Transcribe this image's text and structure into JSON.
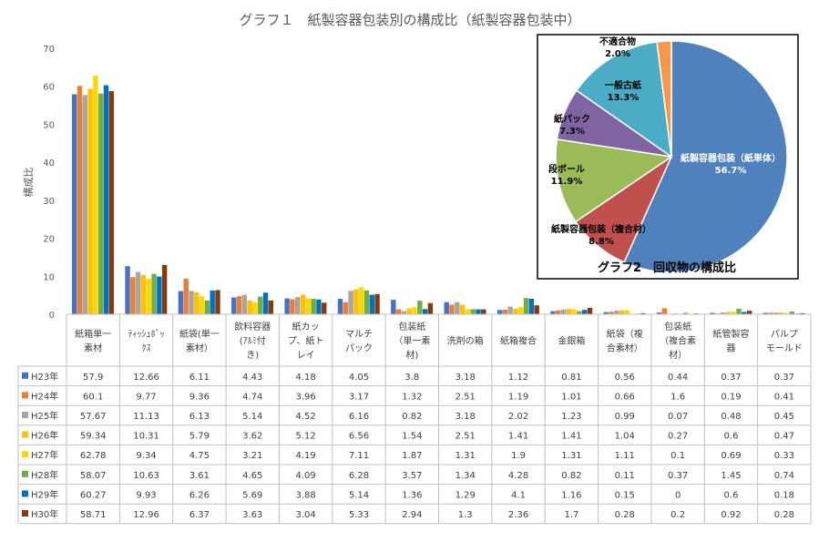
{
  "chart_data": [
    {
      "type": "bar",
      "title": "グラフ１　紙製容器包装別の構成比（紙製容器包装中）",
      "ylabel": "構成比",
      "ylim": [
        0,
        70
      ],
      "yticks": [
        0,
        10,
        20,
        30,
        40,
        50,
        60,
        70
      ],
      "grid": false,
      "legend": "table-left",
      "categories": [
        [
          "紙箱単一",
          "素材"
        ],
        [
          "ﾃｨｯｼｭﾎﾞｯ",
          "ｸｽ"
        ],
        [
          "紙袋(単一",
          "素材）"
        ],
        [
          "飲料容器",
          "(ｱﾙﾐ付",
          "き)"
        ],
        [
          "紙カッ",
          "プ、紙ト",
          "レイ"
        ],
        [
          "マルチ",
          "パック"
        ],
        [
          "包装紙",
          "（単一素",
          "材)"
        ],
        [
          "洗剤の箱"
        ],
        [
          "紙箱複合"
        ],
        [
          "金銀箱"
        ],
        [
          "紙袋（複",
          "合素材）"
        ],
        [
          "包装紙",
          "（複合素",
          "材）"
        ],
        [
          "紙管製容",
          "器"
        ],
        [
          "パルプ",
          "モールド"
        ]
      ],
      "series": [
        {
          "name": "H23年",
          "color": "#4472C4",
          "values": [
            57.9,
            12.66,
            6.11,
            4.43,
            4.18,
            4.05,
            3.8,
            3.18,
            1.12,
            0.81,
            0.56,
            0.44,
            0.37,
            0.37
          ]
        },
        {
          "name": "H24年",
          "color": "#ED7D31",
          "values": [
            60.1,
            9.77,
            9.36,
            4.74,
            3.96,
            3.17,
            1.32,
            2.51,
            1.19,
            1.01,
            0.66,
            1.6,
            0.19,
            0.41
          ]
        },
        {
          "name": "H25年",
          "color": "#A5A5A5",
          "values": [
            57.67,
            11.13,
            6.13,
            5.14,
            4.52,
            6.16,
            0.82,
            3.18,
            2.02,
            1.23,
            0.99,
            0.07,
            0.48,
            0.45
          ]
        },
        {
          "name": "H26年",
          "color": "#FFC000",
          "values": [
            59.34,
            10.31,
            5.79,
            3.62,
            5.12,
            6.56,
            1.54,
            2.51,
            1.41,
            1.41,
            1.04,
            0.27,
            0.6,
            0.47
          ]
        },
        {
          "name": "H27年",
          "color": "#FFD700",
          "values": [
            62.78,
            9.34,
            4.75,
            3.21,
            4.19,
            7.11,
            1.87,
            1.31,
            1.9,
            1.31,
            1.11,
            0.1,
            0.69,
            0.33
          ]
        },
        {
          "name": "H28年",
          "color": "#70AD47",
          "values": [
            58.07,
            10.63,
            3.61,
            4.65,
            4.09,
            6.28,
            3.57,
            1.34,
            4.28,
            0.82,
            0.11,
            0.37,
            1.45,
            0.74
          ]
        },
        {
          "name": "H29年",
          "color": "#0070C0",
          "values": [
            60.27,
            9.93,
            6.26,
            5.69,
            3.88,
            5.14,
            1.36,
            1.29,
            4.1,
            1.16,
            0.15,
            0,
            0.6,
            0.18
          ]
        },
        {
          "name": "H30年",
          "color": "#843C0C",
          "values": [
            58.71,
            12.96,
            6.37,
            3.63,
            3.04,
            5.33,
            2.94,
            1.3,
            2.36,
            1.7,
            0.28,
            0.2,
            0.92,
            0.28
          ]
        }
      ]
    },
    {
      "type": "pie",
      "title": "グラフ2　回収物の構成比",
      "slices": [
        {
          "label": "紙製容器包装（紙単体）",
          "value": 56.7,
          "value_label": "56.7%",
          "color": "#4F81BD"
        },
        {
          "label": "紙製容器包装（複合材）",
          "value": 8.8,
          "value_label": "8.8%",
          "color": "#C0504D"
        },
        {
          "label": "段ボール",
          "value": 11.9,
          "value_label": "11.9%",
          "color": "#9BBB59"
        },
        {
          "label": "紙パック",
          "value": 7.3,
          "value_label": "7.3%",
          "color": "#8064A2"
        },
        {
          "label": "一般古紙",
          "value": 13.3,
          "value_label": "13.3%",
          "color": "#4BACC6"
        },
        {
          "label": "不適合物",
          "value": 2.0,
          "value_label": "2.0%",
          "color": "#F79646"
        }
      ]
    }
  ]
}
